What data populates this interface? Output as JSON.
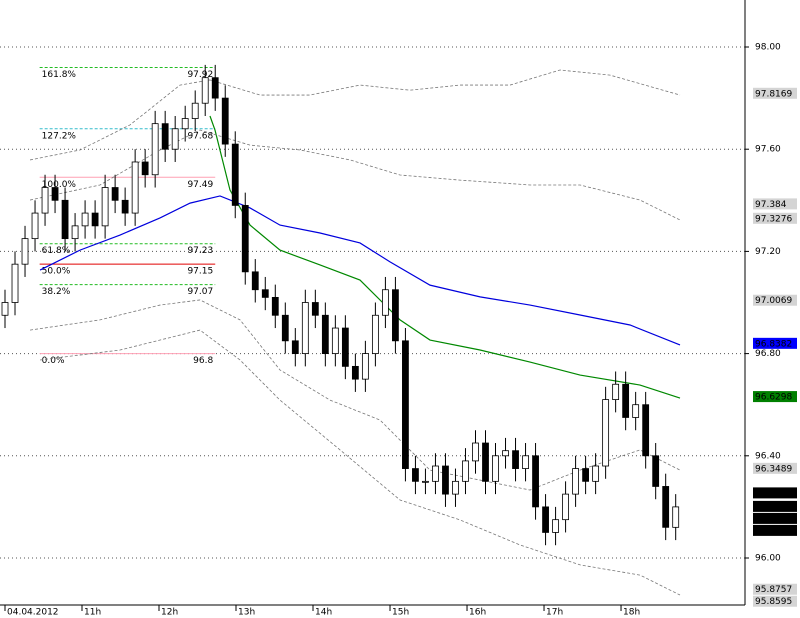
{
  "chart_data": {
    "type": "candlestick",
    "xlim": [
      9.935,
      19.61
    ],
    "xticks": [
      {
        "value": 10,
        "label": "04.04.2012"
      },
      {
        "value": 11,
        "label": "11h"
      },
      {
        "value": 12,
        "label": "12h"
      },
      {
        "value": 13,
        "label": "13h"
      },
      {
        "value": 14,
        "label": "14h"
      },
      {
        "value": 15,
        "label": "15h"
      },
      {
        "value": 16,
        "label": "16h"
      },
      {
        "value": 17,
        "label": "17h"
      },
      {
        "value": 18,
        "label": "18h"
      }
    ],
    "ylim": [
      95.816,
      98.184
    ],
    "yticks": [
      {
        "value": 96,
        "label": "96.00"
      },
      {
        "value": 96.4,
        "label": "96.40"
      },
      {
        "value": 96.8,
        "label": "96.80"
      },
      {
        "value": 97.2,
        "label": "97.20"
      },
      {
        "value": 97.6,
        "label": "97.60"
      },
      {
        "value": 98,
        "label": "98.00"
      }
    ],
    "grid": true,
    "up_color": "#ffffff",
    "down_color": "#000000",
    "x": [
      10,
      10.13,
      10.26,
      10.39,
      10.52,
      10.65,
      10.78,
      10.91,
      11.04,
      11.17,
      11.3,
      11.43,
      11.56,
      11.69,
      11.82,
      11.95,
      12.08,
      12.21,
      12.34,
      12.47,
      12.6,
      12.73,
      12.86,
      12.99,
      13.12,
      13.25,
      13.38,
      13.51,
      13.64,
      13.77,
      13.9,
      14.03,
      14.16,
      14.29,
      14.42,
      14.55,
      14.68,
      14.81,
      14.94,
      15.07,
      15.2,
      15.33,
      15.46,
      15.59,
      15.72,
      15.85,
      15.98,
      16.11,
      16.24,
      16.37,
      16.5,
      16.63,
      16.76,
      16.89,
      17.02,
      17.15,
      17.28,
      17.41,
      17.54,
      17.67,
      17.8,
      17.93,
      18.06,
      18.19,
      18.32,
      18.45,
      18.58,
      18.71
    ],
    "ohlc": [
      [
        96.95,
        97.05,
        96.9,
        97
      ],
      [
        97,
        97.2,
        96.95,
        97.15
      ],
      [
        97.15,
        97.3,
        97.1,
        97.25
      ],
      [
        97.25,
        97.4,
        97.2,
        97.35
      ],
      [
        97.35,
        97.5,
        97.3,
        97.45
      ],
      [
        97.45,
        97.5,
        97.35,
        97.4
      ],
      [
        97.4,
        97.45,
        97.2,
        97.25
      ],
      [
        97.25,
        97.35,
        97.2,
        97.3
      ],
      [
        97.3,
        97.4,
        97.25,
        97.35
      ],
      [
        97.35,
        97.4,
        97.25,
        97.3
      ],
      [
        97.3,
        97.5,
        97.25,
        97.45
      ],
      [
        97.45,
        97.5,
        97.35,
        97.4
      ],
      [
        97.4,
        97.45,
        97.3,
        97.35
      ],
      [
        97.35,
        97.6,
        97.3,
        97.55
      ],
      [
        97.55,
        97.6,
        97.45,
        97.5
      ],
      [
        97.5,
        97.75,
        97.45,
        97.7
      ],
      [
        97.7,
        97.75,
        97.55,
        97.6
      ],
      [
        97.6,
        97.73,
        97.55,
        97.68
      ],
      [
        97.68,
        97.77,
        97.63,
        97.72
      ],
      [
        97.72,
        97.83,
        97.67,
        97.78
      ],
      [
        97.78,
        97.93,
        97.73,
        97.88
      ],
      [
        97.88,
        97.93,
        97.75,
        97.8
      ],
      [
        97.8,
        97.85,
        97.57,
        97.62
      ],
      [
        97.62,
        97.67,
        97.33,
        97.38
      ],
      [
        97.38,
        97.43,
        97.07,
        97.12
      ],
      [
        97.12,
        97.17,
        97,
        97.05
      ],
      [
        97.05,
        97.1,
        96.97,
        97.02
      ],
      [
        97.02,
        97.07,
        96.9,
        96.95
      ],
      [
        96.95,
        97,
        96.8,
        96.85
      ],
      [
        96.85,
        96.9,
        96.75,
        96.8
      ],
      [
        96.8,
        97.05,
        96.75,
        97
      ],
      [
        97,
        97.05,
        96.9,
        96.95
      ],
      [
        96.95,
        97,
        96.75,
        96.8
      ],
      [
        96.8,
        96.95,
        96.75,
        96.9
      ],
      [
        96.9,
        96.95,
        96.7,
        96.75
      ],
      [
        96.75,
        96.8,
        96.65,
        96.7
      ],
      [
        96.7,
        96.85,
        96.65,
        96.8
      ],
      [
        96.8,
        97,
        96.75,
        96.95
      ],
      [
        96.95,
        97.1,
        96.9,
        97.05
      ],
      [
        97.05,
        97.1,
        96.8,
        96.85
      ],
      [
        96.85,
        96.9,
        96.3,
        96.35
      ],
      [
        96.35,
        96.4,
        96.25,
        96.3
      ],
      [
        96.3,
        96.35,
        96.25,
        96.3
      ],
      [
        96.3,
        96.41,
        96.25,
        96.36
      ],
      [
        96.36,
        96.41,
        96.2,
        96.25
      ],
      [
        96.25,
        96.35,
        96.2,
        96.3
      ],
      [
        96.3,
        96.43,
        96.25,
        96.38
      ],
      [
        96.38,
        96.5,
        96.33,
        96.45
      ],
      [
        96.45,
        96.5,
        96.25,
        96.3
      ],
      [
        96.3,
        96.45,
        96.25,
        96.4
      ],
      [
        96.4,
        96.47,
        96.35,
        96.42
      ],
      [
        96.42,
        96.47,
        96.3,
        96.35
      ],
      [
        96.35,
        96.45,
        96.3,
        96.4
      ],
      [
        96.4,
        96.45,
        96.15,
        96.2
      ],
      [
        96.2,
        96.25,
        96.05,
        96.1
      ],
      [
        96.1,
        96.2,
        96.05,
        96.15
      ],
      [
        96.15,
        96.3,
        96.1,
        96.25
      ],
      [
        96.25,
        96.4,
        96.2,
        96.35
      ],
      [
        96.35,
        96.4,
        96.25,
        96.3
      ],
      [
        96.3,
        96.41,
        96.25,
        96.36
      ],
      [
        96.36,
        96.67,
        96.31,
        96.62
      ],
      [
        96.62,
        96.73,
        96.57,
        96.68
      ],
      [
        96.68,
        96.73,
        96.5,
        96.55
      ],
      [
        96.55,
        96.65,
        96.5,
        96.6
      ],
      [
        96.6,
        96.65,
        96.35,
        96.4
      ],
      [
        96.4,
        96.45,
        96.23,
        96.28
      ],
      [
        96.28,
        96.33,
        96.07,
        96.12
      ],
      [
        96.12,
        96.25,
        96.07,
        96.2
      ]
    ],
    "lines": [
      {
        "color": "#0000dd",
        "dashed": false,
        "x": [
          10.455,
          10.974,
          11.494,
          12.013,
          12.403,
          12.792,
          13.182,
          13.571,
          14.091,
          14.61,
          15,
          15.519,
          16.169,
          16.818,
          17.468,
          18.117,
          18.766
        ],
        "values": [
          97.127,
          97.205,
          97.264,
          97.331,
          97.389,
          97.417,
          97.37,
          97.303,
          97.272,
          97.233,
          97.159,
          97.068,
          97.022,
          96.99,
          96.951,
          96.912,
          96.834
        ]
      },
      {
        "color": "#008800",
        "dashed": false,
        "x": [
          12.662,
          12.727,
          12.922,
          13.182,
          13.571,
          14.091,
          14.61,
          15.13,
          15.519,
          16.169,
          16.818,
          17.468,
          18.247,
          18.766
        ],
        "values": [
          97.73,
          97.675,
          97.44,
          97.303,
          97.205,
          97.147,
          97.088,
          96.932,
          96.853,
          96.814,
          96.767,
          96.716,
          96.677,
          96.626
        ]
      },
      {
        "color": "#777777",
        "dashed": true,
        "x": [
          10.325,
          10.974,
          11.623,
          12.273,
          12.662,
          13.312,
          13.961,
          14.61,
          15.26,
          15.909,
          16.558,
          17.208,
          17.857,
          18.766
        ],
        "values": [
          97.558,
          97.597,
          97.695,
          97.851,
          97.871,
          97.812,
          97.812,
          97.851,
          97.831,
          97.851,
          97.851,
          97.91,
          97.89,
          97.812
        ]
      },
      {
        "color": "#777777",
        "dashed": true,
        "x": [
          10.325,
          11.234,
          12.013,
          12.532,
          13.182,
          13.831,
          14.481,
          15.13,
          15.909,
          16.818,
          17.468,
          18.247,
          18.766
        ],
        "values": [
          97.401,
          97.46,
          97.597,
          97.675,
          97.616,
          97.597,
          97.558,
          97.499,
          97.479,
          97.46,
          97.46,
          97.401,
          97.323
        ]
      },
      {
        "color": "#777777",
        "dashed": true,
        "x": [
          10.325,
          11.234,
          12.013,
          12.532,
          13.052,
          13.571,
          14.221,
          14.87,
          15.519,
          16.169,
          16.818,
          17.468,
          18.247,
          18.766
        ],
        "values": [
          96.892,
          96.932,
          96.99,
          97.01,
          96.932,
          96.736,
          96.618,
          96.54,
          96.344,
          96.305,
          96.266,
          96.344,
          96.423,
          96.344
        ]
      },
      {
        "color": "#777777",
        "dashed": true,
        "x": [
          10.455,
          11.494,
          12.532,
          13.052,
          13.571,
          14.351,
          15.13,
          15.909,
          16.688,
          17.468,
          18.247,
          18.766
        ],
        "values": [
          96.775,
          96.814,
          96.892,
          96.775,
          96.618,
          96.423,
          96.227,
          96.149,
          96.051,
          95.973,
          95.933,
          95.855
        ]
      }
    ],
    "fib_x": [
      10.45,
      12.73
    ],
    "fib": [
      {
        "label": "161.8%",
        "value": 97.92,
        "color": "#22bb22",
        "dashed": true
      },
      {
        "label": "127.2%",
        "value": 97.68,
        "color": "#33bbcc",
        "dashed": true
      },
      {
        "label": "100.0%",
        "value": 97.49,
        "color": "#ffa0b4",
        "dashed": false
      },
      {
        "label": "61.8%",
        "value": 97.23,
        "color": "#22bb22",
        "dashed": true
      },
      {
        "label": "50.0%",
        "value": 97.15,
        "color": "#e00000",
        "dashed": false
      },
      {
        "label": "38.2%",
        "value": 97.07,
        "color": "#22bb22",
        "dashed": true
      },
      {
        "label": "0.0%",
        "value": 96.8,
        "color": "#ffa0b4",
        "dashed": false
      }
    ],
    "price_labels": [
      {
        "value": 97.8169,
        "color": "#d4d4d4"
      },
      {
        "value": 97.384,
        "color": "#d4d4d4"
      },
      {
        "value": 97.3276,
        "color": "#d4d4d4"
      },
      {
        "value": 97.0069,
        "color": "#d4d4d4"
      },
      {
        "value": 96.8382,
        "color": "#0000ff"
      },
      {
        "value": 96.6298,
        "color": "#008000"
      },
      {
        "value": 96.3489,
        "color": "#d4d4d4"
      },
      {
        "value": 96.2528,
        "color": "#000000"
      },
      {
        "value": 96.2,
        "color": "#000000"
      },
      {
        "value": 96.2,
        "color": "#000000"
      },
      {
        "value": 96.2,
        "color": "#000000"
      },
      {
        "value": 95.8757,
        "color": "#d4d4d4"
      },
      {
        "value": 95.8595,
        "color": "#d4d4d4"
      }
    ]
  }
}
